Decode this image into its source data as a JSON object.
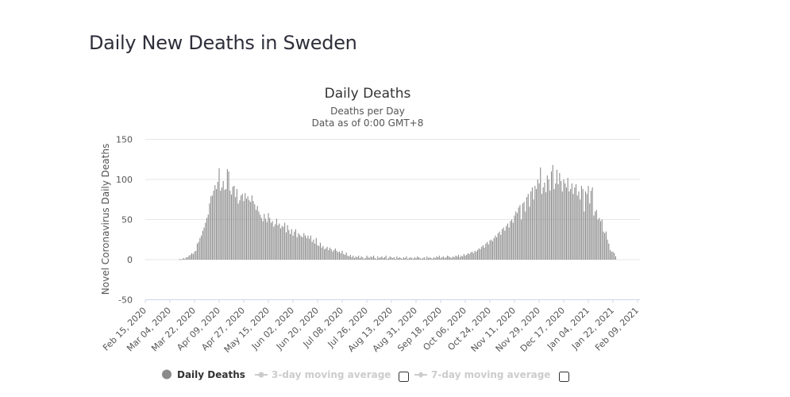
{
  "page": {
    "title": "Daily New Deaths in Sweden"
  },
  "chart_data": {
    "type": "bar",
    "title": "Daily Deaths",
    "subtitle": [
      "Deaths per Day",
      "Data as of 0:00 GMT+8"
    ],
    "xlabel": "",
    "ylabel": "Novel Coronavirus Daily Deaths",
    "ylim": [
      -50,
      150
    ],
    "yticks": [
      -50,
      0,
      50,
      100,
      150
    ],
    "grid": true,
    "x_range": [
      "2020-02-15",
      "2021-02-09"
    ],
    "xticks": [
      "Feb 15, 2020",
      "Mar 04, 2020",
      "Mar 22, 2020",
      "Apr 09, 2020",
      "Apr 27, 2020",
      "May 15, 2020",
      "Jun 02, 2020",
      "Jun 20, 2020",
      "Jul 08, 2020",
      "Jul 26, 2020",
      "Aug 13, 2020",
      "Aug 31, 2020",
      "Sep 18, 2020",
      "Oct 06, 2020",
      "Oct 24, 2020",
      "Nov 11, 2020",
      "Nov 29, 2020",
      "Dec 17, 2020",
      "Jan 04, 2021",
      "Jan 22, 2021",
      "Feb 09, 2021"
    ],
    "series": [
      {
        "name": "Daily Deaths",
        "color": "#8a8a8a",
        "start_date": "2020-03-11",
        "values": [
          1,
          0,
          1,
          2,
          1,
          3,
          3,
          5,
          6,
          8,
          7,
          10,
          11,
          20,
          22,
          27,
          30,
          36,
          40,
          46,
          52,
          56,
          70,
          79,
          80,
          86,
          93,
          88,
          97,
          114,
          86,
          90,
          98,
          87,
          88,
          113,
          110,
          86,
          81,
          91,
          92,
          78,
          88,
          70,
          74,
          80,
          82,
          73,
          83,
          76,
          79,
          74,
          72,
          80,
          73,
          69,
          62,
          67,
          60,
          56,
          52,
          48,
          57,
          51,
          47,
          58,
          52,
          46,
          48,
          41,
          44,
          51,
          43,
          45,
          39,
          42,
          41,
          46,
          34,
          43,
          37,
          32,
          38,
          30,
          35,
          38,
          28,
          33,
          31,
          29,
          28,
          33,
          30,
          27,
          30,
          26,
          30,
          22,
          25,
          20,
          27,
          18,
          17,
          21,
          15,
          17,
          13,
          14,
          16,
          12,
          15,
          13,
          10,
          12,
          14,
          11,
          9,
          10,
          8,
          11,
          7,
          6,
          9,
          5,
          4,
          6,
          3,
          5,
          2,
          4,
          3,
          5,
          2,
          4,
          3,
          1,
          2,
          5,
          3,
          2,
          4,
          3,
          5,
          2,
          1,
          4,
          2,
          3,
          4,
          2,
          3,
          5,
          1,
          2,
          4,
          3,
          2,
          3,
          1,
          4,
          2,
          3,
          2,
          1,
          3,
          2,
          4,
          1,
          2,
          3,
          2,
          1,
          3,
          2,
          4,
          3,
          2,
          1,
          2,
          3,
          1,
          4,
          2,
          3,
          2,
          1,
          3,
          2,
          4,
          3,
          5,
          2,
          3,
          4,
          2,
          3,
          5,
          4,
          3,
          2,
          4,
          3,
          5,
          4,
          6,
          3,
          5,
          4,
          7,
          5,
          6,
          8,
          7,
          9,
          10,
          8,
          11,
          10,
          12,
          14,
          13,
          16,
          18,
          15,
          20,
          22,
          19,
          24,
          25,
          23,
          27,
          30,
          28,
          33,
          35,
          31,
          38,
          40,
          36,
          42,
          45,
          40,
          48,
          50,
          46,
          55,
          60,
          58,
          65,
          68,
          50,
          70,
          72,
          60,
          78,
          82,
          66,
          85,
          90,
          75,
          92,
          88,
          100,
          95,
          115,
          82,
          90,
          96,
          84,
          105,
          100,
          86,
          110,
          118,
          88,
          95,
          112,
          94,
          108,
          98,
          85,
          100,
          95,
          90,
          102,
          85,
          88,
          95,
          82,
          90,
          94,
          80,
          85,
          75,
          92,
          88,
          60,
          85,
          82,
          92,
          70,
          86,
          90,
          55,
          60,
          62,
          50,
          52,
          48,
          50,
          35,
          33,
          35,
          25,
          20,
          12,
          10,
          10,
          8,
          4
        ]
      }
    ],
    "legend": {
      "position": "bottom",
      "items": [
        {
          "label": "Daily Deaths",
          "active": true,
          "color": "#8a8a8a",
          "marker": "circle"
        },
        {
          "label": "3-day moving average",
          "active": false,
          "color": "#cccccc",
          "marker": "line-circle",
          "checkbox": false
        },
        {
          "label": "7-day moving average",
          "active": false,
          "color": "#cccccc",
          "marker": "line-diamond",
          "checkbox": false
        }
      ]
    }
  }
}
